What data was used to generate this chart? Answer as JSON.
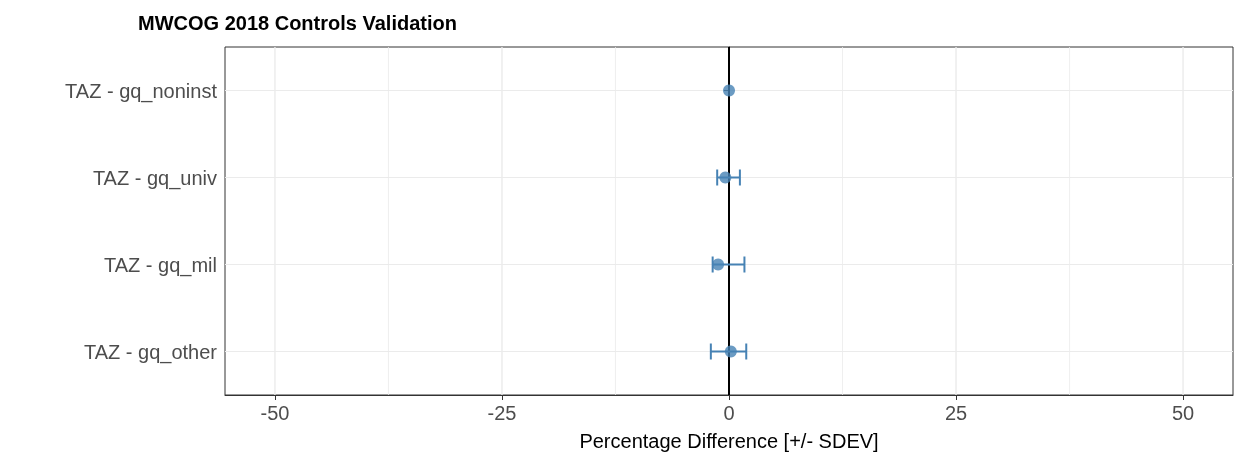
{
  "chart_data": {
    "type": "scatter",
    "title": "MWCOG 2018 Controls Validation",
    "xlabel": "Percentage Difference [+/- SDEV]",
    "orientation": "horizontal",
    "categories": [
      "TAZ - gq_noninst",
      "TAZ - gq_univ",
      "TAZ - gq_mil",
      "TAZ - gq_other"
    ],
    "series": [
      {
        "color": "#4682b4",
        "values": [
          0,
          -0.4,
          -1.2,
          0.2
        ],
        "errors": [
          null,
          [
            -1.3,
            1.2
          ],
          [
            -1.8,
            1.7
          ],
          [
            -2.0,
            1.9
          ]
        ]
      }
    ],
    "xlim": [
      -55.5,
      55.5
    ],
    "xticks": [
      -50,
      {
        "value": -37.5,
        "label": null
      },
      -25,
      {
        "value": -12.5,
        "label": null
      },
      0,
      {
        "value": 12.5,
        "label": null
      },
      25,
      {
        "value": 37.5,
        "label": null
      },
      50
    ],
    "ref_lines": [
      {
        "axis": "x",
        "value": 0,
        "color": "#000000"
      }
    ],
    "grid": true,
    "marker": "circle"
  }
}
